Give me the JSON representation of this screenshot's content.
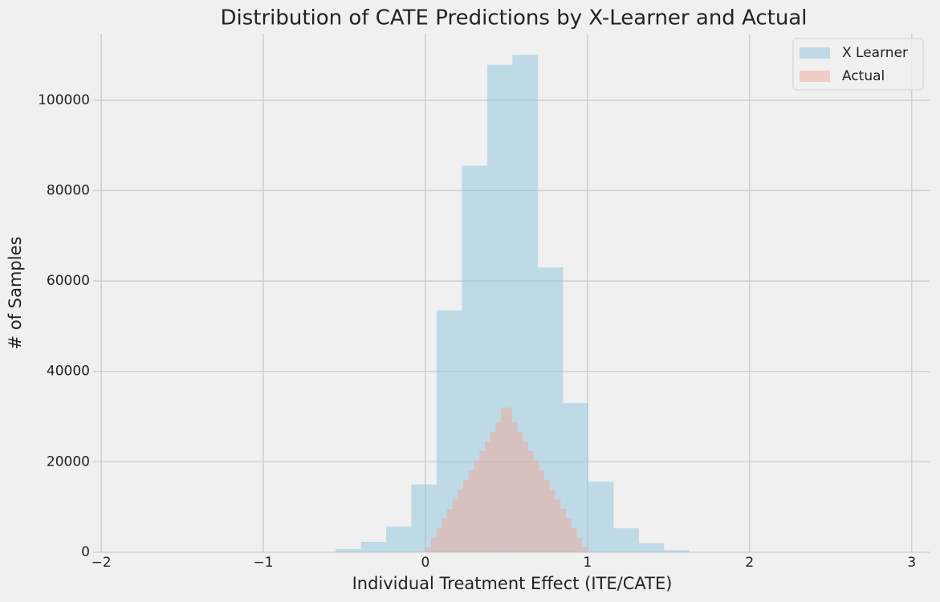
{
  "chart_data": {
    "type": "histogram",
    "title": "Distribution of CATE Predictions by X-Learner and Actual",
    "x_label": "Individual Treatment Effect (ITE/CATE)",
    "y_label": "# of Samples",
    "xlim": [
      -2.05,
      3.11
    ],
    "ylim": [
      0,
      114700
    ],
    "xticks": [
      {
        "value": -2,
        "label": "−2"
      },
      {
        "value": -1,
        "label": "−1"
      },
      0,
      1,
      2,
      3
    ],
    "yticks": [
      0,
      20000,
      40000,
      60000,
      80000,
      100000
    ],
    "grid": true,
    "legend": "upper right",
    "alpha": 0.5,
    "series": [
      {
        "name": "X Learner",
        "color": "#8ec4de",
        "bins": [
          -0.554,
          -0.398,
          -0.242,
          -0.087,
          0.069,
          0.225,
          0.381,
          0.537,
          0.693,
          0.849,
          1.005,
          1.161,
          1.317,
          1.472,
          1.628
        ],
        "values": [
          700,
          2300,
          5700,
          15000,
          53500,
          85500,
          107800,
          110000,
          63000,
          33000,
          15600,
          5300,
          2000,
          500
        ]
      },
      {
        "name": "Actual",
        "color": "#f0a898",
        "bins": [
          0,
          0.0333,
          0.0667,
          0.1,
          0.1333,
          0.1667,
          0.2,
          0.2333,
          0.2667,
          0.3,
          0.3333,
          0.3667,
          0.4,
          0.4333,
          0.4667,
          0.5,
          0.5333,
          0.5667,
          0.6,
          0.6333,
          0.6667,
          0.7,
          0.7333,
          0.7667,
          0.8,
          0.8333,
          0.8667,
          0.9,
          0.9333,
          0.9667,
          1
        ],
        "values": [
          1100,
          3200,
          5300,
          7500,
          9600,
          11700,
          13900,
          16000,
          18100,
          20300,
          22400,
          24500,
          26700,
          28800,
          32000,
          32000,
          28800,
          26700,
          24500,
          22400,
          20300,
          18100,
          16000,
          13900,
          11700,
          9600,
          7500,
          5300,
          3200,
          1100
        ]
      }
    ]
  }
}
